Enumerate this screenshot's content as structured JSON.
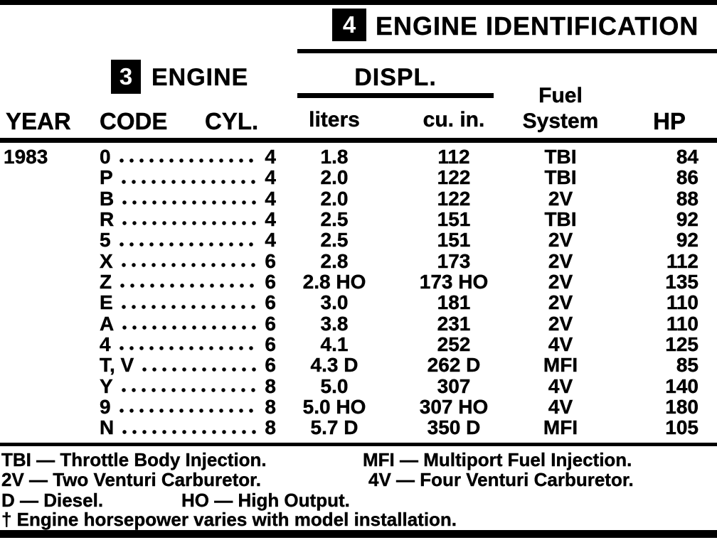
{
  "colors": {
    "ink": "#000000",
    "paper": "#ffffff"
  },
  "sections": {
    "engine_id": {
      "number": "4",
      "title": "ENGINE IDENTIFICATION"
    },
    "engine": {
      "number": "3",
      "title": "ENGINE"
    }
  },
  "table": {
    "group_header": "DISPL.",
    "columns": {
      "year": "YEAR",
      "code": "CODE",
      "cyl": "CYL.",
      "liters": "liters",
      "cu_in": "cu. in.",
      "fuel_line1": "Fuel",
      "fuel_line2": "System",
      "hp": "HP"
    },
    "year": "1983",
    "rows": [
      {
        "code": "0",
        "cyl": "4",
        "liters": "1.8",
        "cu_in": "112",
        "fuel": "TBI",
        "hp": "84"
      },
      {
        "code": "P",
        "cyl": "4",
        "liters": "2.0",
        "cu_in": "122",
        "fuel": "TBI",
        "hp": "86"
      },
      {
        "code": "B",
        "cyl": "4",
        "liters": "2.0",
        "cu_in": "122",
        "fuel": "2V",
        "hp": "88"
      },
      {
        "code": "R",
        "cyl": "4",
        "liters": "2.5",
        "cu_in": "151",
        "fuel": "TBI",
        "hp": "92"
      },
      {
        "code": "5",
        "cyl": "4",
        "liters": "2.5",
        "cu_in": "151",
        "fuel": "2V",
        "hp": "92"
      },
      {
        "code": "X",
        "cyl": "6",
        "liters": "2.8",
        "cu_in": "173",
        "fuel": "2V",
        "hp": "112"
      },
      {
        "code": "Z",
        "cyl": "6",
        "liters": "2.8 HO",
        "cu_in": "173 HO",
        "fuel": "2V",
        "hp": "135"
      },
      {
        "code": "E",
        "cyl": "6",
        "liters": "3.0",
        "cu_in": "181",
        "fuel": "2V",
        "hp": "110"
      },
      {
        "code": "A",
        "cyl": "6",
        "liters": "3.8",
        "cu_in": "231",
        "fuel": "2V",
        "hp": "110"
      },
      {
        "code": "4",
        "cyl": "6",
        "liters": "4.1",
        "cu_in": "252",
        "fuel": "4V",
        "hp": "125"
      },
      {
        "code": "T, V",
        "cyl": "6",
        "liters": "4.3 D",
        "cu_in": "262 D",
        "fuel": "MFI",
        "hp": "85"
      },
      {
        "code": "Y",
        "cyl": "8",
        "liters": "5.0",
        "cu_in": "307",
        "fuel": "4V",
        "hp": "140"
      },
      {
        "code": "9",
        "cyl": "8",
        "liters": "5.0 HO",
        "cu_in": "307 HO",
        "fuel": "4V",
        "hp": "180"
      },
      {
        "code": "N",
        "cyl": "8",
        "liters": "5.7 D",
        "cu_in": "350 D",
        "fuel": "MFI",
        "hp": "105"
      }
    ]
  },
  "footer": {
    "legend_rows": [
      {
        "left": "TBI — Throttle Body Injection.",
        "right": "MFI — Multiport Fuel Injection."
      },
      {
        "left": "2V — Two Venturi Carburetor.",
        "right": "4V — Four Venturi Carburetor."
      },
      {
        "left": "D — Diesel.",
        "right": "HO — High Output."
      }
    ],
    "note": "† Engine horsepower varies with model installation."
  }
}
